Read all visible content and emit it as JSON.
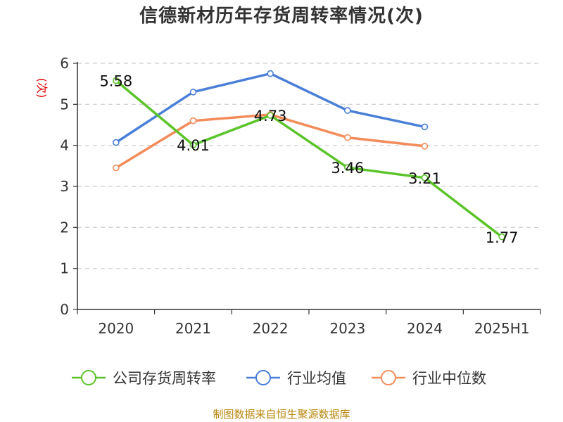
{
  "title": "信德新材历年存货周转率情况(次)",
  "footer": "制图数据来自恒生聚源数据库",
  "chart_data": {
    "type": "line",
    "title": "信德新材历年存货周转率情况(次)",
    "ylabel": "(次)",
    "xlabel": "",
    "categories": [
      "2020",
      "2021",
      "2022",
      "2023",
      "2024",
      "2025H1"
    ],
    "ylim": [
      0,
      6
    ],
    "yticks": [
      "0",
      "1",
      "2",
      "3",
      "4",
      "5",
      "6"
    ],
    "grid": true,
    "legend_position": "bottom",
    "series": [
      {
        "name": "公司存货周转率",
        "color": "#5cc42b",
        "values": [
          5.58,
          4.01,
          4.73,
          3.46,
          3.21,
          1.77
        ],
        "labels": [
          "5.58",
          "4.01",
          "4.73",
          "3.46",
          "3.21",
          "1.77"
        ]
      },
      {
        "name": "行业均值",
        "color": "#4a7fd8",
        "values": [
          4.07,
          5.3,
          5.75,
          4.85,
          4.45,
          null
        ]
      },
      {
        "name": "行业中位数",
        "color": "#f28c5a",
        "values": [
          3.45,
          4.6,
          4.75,
          4.19,
          3.98,
          null
        ]
      }
    ]
  }
}
